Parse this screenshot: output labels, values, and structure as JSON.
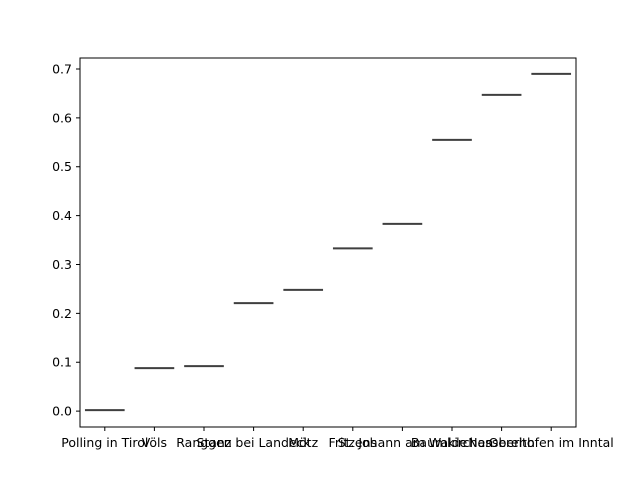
{
  "chart_data": {
    "type": "bar",
    "categories": [
      "Polling in Tirol",
      "Völs",
      "Ranggen",
      "Stanz bei Landeck",
      "Mötz",
      "Fritzens",
      "St. Johann am Walde",
      "Baumkirchen",
      "Nassereith",
      "Oberhofen im Inntal"
    ],
    "values": [
      0.002,
      0.088,
      0.092,
      0.221,
      0.248,
      0.333,
      0.383,
      0.555,
      0.647,
      0.69
    ],
    "y_ticks": [
      "0.0",
      "0.1",
      "0.2",
      "0.3",
      "0.4",
      "0.5",
      "0.6",
      "0.7"
    ],
    "title": "",
    "xlabel": "",
    "ylabel": "",
    "ylim": [
      -0.0325,
      0.7225
    ],
    "grid": false,
    "legend": "none",
    "colors": {
      "marks": "#3f3f3f",
      "axes": "#000000",
      "background": "#ffffff"
    }
  }
}
